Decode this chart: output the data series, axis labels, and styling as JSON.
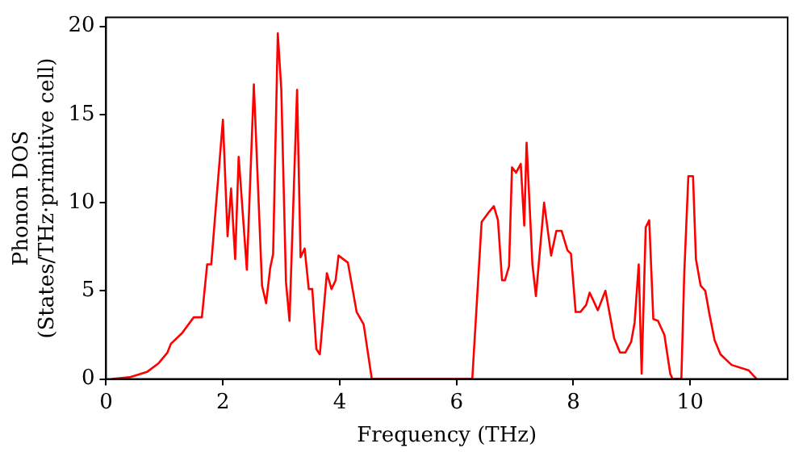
{
  "chart_data": {
    "type": "line",
    "xlabel": "Frequency (THz)",
    "ylabel": "Phonon DOS\n(States/THz·primitive cell)",
    "xlim": [
      0,
      11.67
    ],
    "ylim": [
      0,
      20.5
    ],
    "xticks": [
      0,
      2,
      4,
      6,
      8,
      10
    ],
    "yticks": [
      0,
      5,
      10,
      15,
      20
    ],
    "grid": false,
    "legend": false,
    "marker": "none",
    "line_style": "solid",
    "series": [
      {
        "color": "#ff0000",
        "x": [
          0.1,
          0.4,
          0.7,
          0.9,
          1.05,
          1.11,
          1.3,
          1.5,
          1.64,
          1.73,
          1.8,
          2.0,
          2.08,
          2.14,
          2.21,
          2.27,
          2.41,
          2.53,
          2.67,
          2.74,
          2.81,
          2.86,
          2.94,
          3.0,
          3.08,
          3.14,
          3.27,
          3.33,
          3.4,
          3.47,
          3.53,
          3.6,
          3.66,
          3.78,
          3.86,
          3.93,
          3.98,
          4.14,
          4.29,
          4.41,
          4.55,
          6.27,
          6.43,
          6.54,
          6.64,
          6.71,
          6.78,
          6.83,
          6.9,
          6.95,
          7.02,
          7.1,
          7.16,
          7.2,
          7.3,
          7.36,
          7.5,
          7.62,
          7.71,
          7.8,
          7.9,
          7.96,
          8.04,
          8.12,
          8.22,
          8.28,
          8.42,
          8.55,
          8.7,
          8.8,
          8.89,
          8.99,
          9.05,
          9.12,
          9.17,
          9.24,
          9.3,
          9.37,
          9.45,
          9.56,
          9.66,
          9.7,
          9.85,
          9.9,
          9.97,
          10.05,
          10.1,
          10.18,
          10.26,
          10.33,
          10.42,
          10.52,
          10.71,
          11.0,
          11.14
        ],
        "values": [
          0,
          0.1,
          0.4,
          0.9,
          1.5,
          2.0,
          2.6,
          3.5,
          3.5,
          6.5,
          6.5,
          14.7,
          8.1,
          10.8,
          6.8,
          12.6,
          6.2,
          16.7,
          5.3,
          4.3,
          6.3,
          7.1,
          19.6,
          16.4,
          5.5,
          3.3,
          16.4,
          6.9,
          7.4,
          5.1,
          5.1,
          1.7,
          1.4,
          6.0,
          5.1,
          5.6,
          7.0,
          6.6,
          3.8,
          3.1,
          0,
          0,
          8.9,
          9.4,
          9.8,
          9.0,
          5.6,
          5.6,
          6.4,
          12.0,
          11.7,
          12.2,
          8.7,
          13.4,
          6.5,
          4.7,
          10.0,
          7.0,
          8.4,
          8.4,
          7.3,
          7.1,
          3.8,
          3.8,
          4.2,
          4.9,
          3.9,
          5.0,
          2.3,
          1.5,
          1.5,
          2.1,
          3.2,
          6.5,
          0.3,
          8.6,
          9.0,
          3.4,
          3.3,
          2.5,
          0.3,
          0,
          0,
          6.0,
          11.5,
          11.5,
          6.8,
          5.3,
          5.0,
          3.7,
          2.2,
          1.4,
          0.8,
          0.5,
          0
        ]
      }
    ]
  }
}
